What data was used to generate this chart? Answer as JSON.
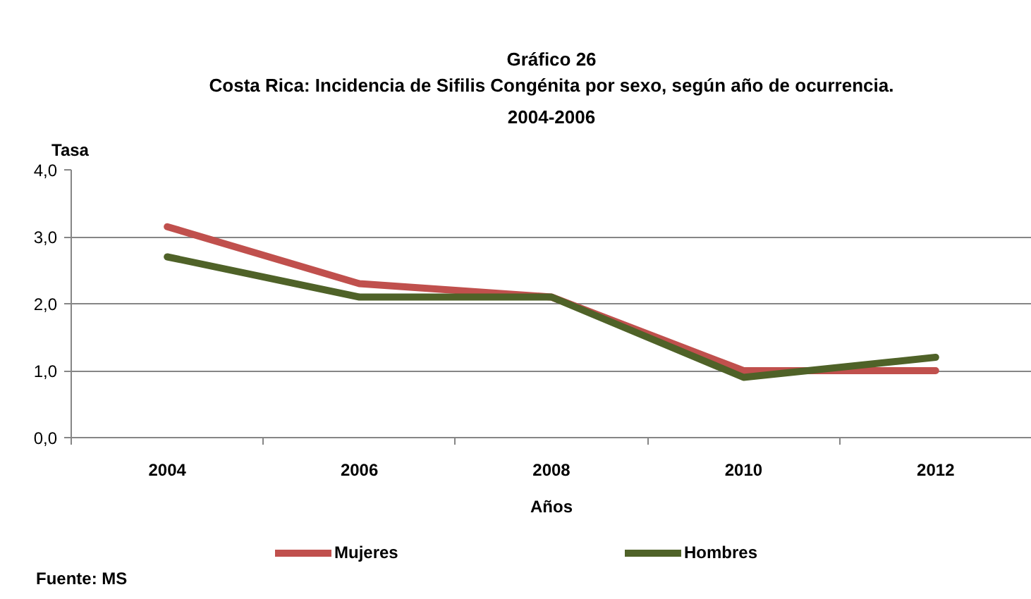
{
  "chart_data": {
    "type": "line",
    "title": "Gráfico 26",
    "subtitle": "Costa Rica: Incidencia de Sifilis Congénita por sexo, según año de ocurrencia.\n2004-2006",
    "xlabel": "Años",
    "ylabel": "Tasa",
    "categories": [
      "2004",
      "2006",
      "2008",
      "2010",
      "2012"
    ],
    "series": [
      {
        "name": "Mujeres",
        "color": "#c0504d",
        "values": [
          3.15,
          2.3,
          2.1,
          1.0,
          1.0
        ]
      },
      {
        "name": "Hombres",
        "color": "#4f6228",
        "values": [
          2.7,
          2.1,
          2.1,
          0.9,
          1.2
        ]
      }
    ],
    "ylim": [
      0,
      4
    ],
    "yticks": [
      {
        "value": 0,
        "label": "0,0"
      },
      {
        "value": 1,
        "label": "1,0"
      },
      {
        "value": 2,
        "label": "2,0"
      },
      {
        "value": 3,
        "label": "3,0"
      },
      {
        "value": 4,
        "label": "4,0"
      }
    ],
    "grid": "y",
    "legend": "bottom",
    "line_style": "solid",
    "annotations": [
      "Fuente: MS"
    ]
  }
}
